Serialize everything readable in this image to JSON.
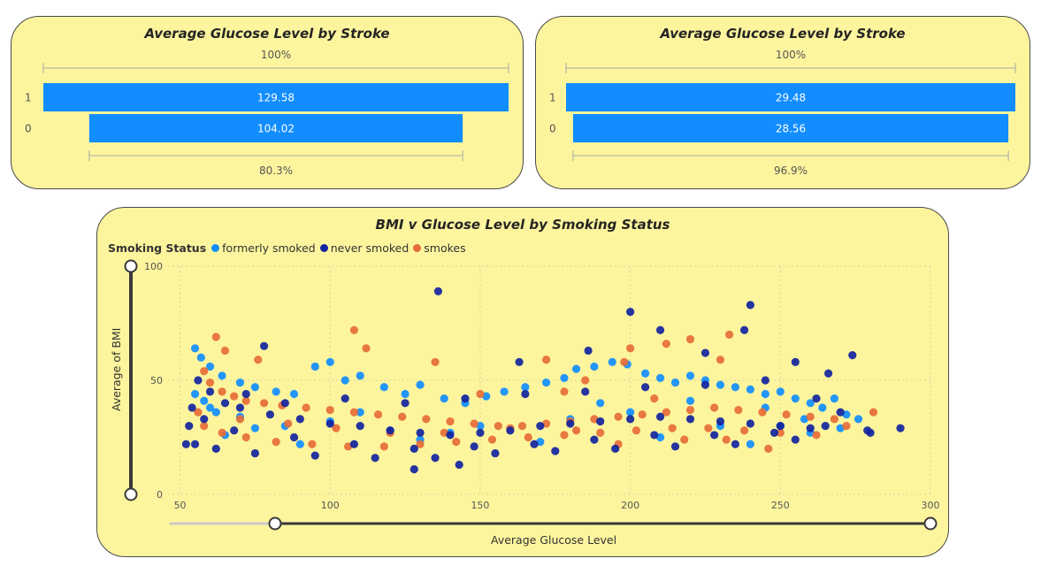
{
  "funnels": [
    {
      "title": "Average Glucose Level by Stroke",
      "top_pct": "100%",
      "bottom_pct": "80.3%",
      "bar_color": "#118dff"
    },
    {
      "title": "Average Glucose Level by Stroke",
      "top_pct": "100%",
      "bottom_pct": "96.9%",
      "bar_color": "#118dff"
    }
  ],
  "scatter": {
    "title": "BMI v Glucose Level by Smoking Status",
    "legend_title": "Smoking Status",
    "x_title": "Average Glucose Level",
    "y_title": "Average of BMI"
  },
  "chart_data": [
    {
      "type": "bar",
      "title": "Average Glucose Level by Stroke",
      "categories": [
        "1",
        "0"
      ],
      "values": [
        129.58,
        104.02
      ],
      "value_labels": [
        "129.58",
        "104.02"
      ],
      "percent_of_first": [
        "100%",
        "80.3%"
      ]
    },
    {
      "type": "bar",
      "title": "Average Glucose Level by Stroke",
      "categories": [
        "1",
        "0"
      ],
      "values": [
        29.48,
        28.56
      ],
      "value_labels": [
        "29.48",
        "28.56"
      ],
      "percent_of_first": [
        "100%",
        "96.9%"
      ]
    },
    {
      "type": "scatter",
      "title": "BMI v Glucose Level by Smoking Status",
      "xlabel": "Average Glucose Level",
      "ylabel": "Average of BMI",
      "xlim": [
        46,
        300
      ],
      "ylim": [
        0,
        100
      ],
      "x_ticks": [
        50,
        100,
        150,
        200,
        250,
        300
      ],
      "y_ticks": [
        0,
        50,
        100
      ],
      "grid": true,
      "legend_position": "top-left",
      "series": [
        {
          "name": "formerly smoked",
          "color": "#118dff",
          "points": [
            [
              55,
              64
            ],
            [
              57,
              60
            ],
            [
              60,
              56
            ],
            [
              64,
              52
            ],
            [
              70,
              49
            ],
            [
              75,
              47
            ],
            [
              82,
              45
            ],
            [
              88,
              44
            ],
            [
              95,
              56
            ],
            [
              100,
              58
            ],
            [
              105,
              50
            ],
            [
              110,
              52
            ],
            [
              118,
              47
            ],
            [
              125,
              44
            ],
            [
              130,
              48
            ],
            [
              138,
              42
            ],
            [
              145,
              40
            ],
            [
              152,
              43
            ],
            [
              158,
              45
            ],
            [
              165,
              47
            ],
            [
              172,
              49
            ],
            [
              178,
              51
            ],
            [
              182,
              55
            ],
            [
              188,
              56
            ],
            [
              194,
              58
            ],
            [
              199,
              57
            ],
            [
              205,
              53
            ],
            [
              210,
              51
            ],
            [
              215,
              49
            ],
            [
              220,
              52
            ],
            [
              225,
              50
            ],
            [
              230,
              48
            ],
            [
              235,
              47
            ],
            [
              240,
              46
            ],
            [
              245,
              44
            ],
            [
              250,
              45
            ],
            [
              255,
              42
            ],
            [
              260,
              40
            ],
            [
              264,
              38
            ],
            [
              268,
              42
            ],
            [
              272,
              35
            ],
            [
              276,
              33
            ],
            [
              60,
              38
            ],
            [
              70,
              34
            ],
            [
              85,
              30
            ],
            [
              100,
              32
            ],
            [
              120,
              28
            ],
            [
              150,
              30
            ],
            [
              180,
              33
            ],
            [
              200,
              36
            ],
            [
              230,
              30
            ],
            [
              250,
              30
            ],
            [
              260,
              27
            ],
            [
              270,
              29
            ],
            [
              65,
              26
            ],
            [
              90,
              22
            ],
            [
              130,
              24
            ],
            [
              170,
              23
            ],
            [
              210,
              25
            ],
            [
              240,
              22
            ],
            [
              55,
              44
            ],
            [
              58,
              41
            ],
            [
              62,
              36
            ],
            [
              75,
              29
            ],
            [
              110,
              36
            ],
            [
              140,
              27
            ],
            [
              190,
              40
            ],
            [
              220,
              41
            ],
            [
              245,
              38
            ],
            [
              258,
              33
            ]
          ]
        },
        {
          "name": "never smoked",
          "color": "#12239e",
          "points": [
            [
              136,
              89
            ],
            [
              200,
              80
            ],
            [
              240,
              83
            ],
            [
              238,
              72
            ],
            [
              210,
              72
            ],
            [
              78,
              65
            ],
            [
              163,
              58
            ],
            [
              186,
              63
            ],
            [
              274,
              61
            ],
            [
              255,
              58
            ],
            [
              225,
              62
            ],
            [
              266,
              53
            ],
            [
              290,
              29
            ],
            [
              279,
              28
            ],
            [
              280,
              27
            ],
            [
              56,
              50
            ],
            [
              60,
              45
            ],
            [
              65,
              40
            ],
            [
              70,
              38
            ],
            [
              80,
              35
            ],
            [
              90,
              33
            ],
            [
              100,
              31
            ],
            [
              110,
              30
            ],
            [
              120,
              28
            ],
            [
              130,
              27
            ],
            [
              140,
              26
            ],
            [
              150,
              27
            ],
            [
              160,
              28
            ],
            [
              170,
              30
            ],
            [
              180,
              31
            ],
            [
              190,
              32
            ],
            [
              200,
              33
            ],
            [
              210,
              34
            ],
            [
              220,
              33
            ],
            [
              230,
              32
            ],
            [
              240,
              31
            ],
            [
              250,
              30
            ],
            [
              260,
              29
            ],
            [
              265,
              30
            ],
            [
              55,
              22
            ],
            [
              62,
              20
            ],
            [
              75,
              18
            ],
            [
              95,
              17
            ],
            [
              115,
              16
            ],
            [
              135,
              16
            ],
            [
              155,
              18
            ],
            [
              175,
              19
            ],
            [
              195,
              20
            ],
            [
              215,
              21
            ],
            [
              235,
              22
            ],
            [
              255,
              24
            ],
            [
              58,
              33
            ],
            [
              68,
              28
            ],
            [
              88,
              25
            ],
            [
              108,
              22
            ],
            [
              128,
              20
            ],
            [
              148,
              21
            ],
            [
              168,
              22
            ],
            [
              188,
              24
            ],
            [
              208,
              26
            ],
            [
              228,
              26
            ],
            [
              248,
              27
            ],
            [
              270,
              36
            ],
            [
              262,
              42
            ],
            [
              245,
              50
            ],
            [
              225,
              48
            ],
            [
              205,
              47
            ],
            [
              185,
              45
            ],
            [
              165,
              44
            ],
            [
              145,
              42
            ],
            [
              125,
              40
            ],
            [
              105,
              42
            ],
            [
              85,
              40
            ],
            [
              72,
              44
            ],
            [
              128,
              11
            ],
            [
              143,
              13
            ],
            [
              52,
              22
            ],
            [
              53,
              30
            ],
            [
              54,
              38
            ]
          ]
        },
        {
          "name": "smokes",
          "color": "#e66c37",
          "points": [
            [
              108,
              72
            ],
            [
              62,
              69
            ],
            [
              65,
              63
            ],
            [
              112,
              64
            ],
            [
              200,
              64
            ],
            [
              212,
              66
            ],
            [
              233,
              70
            ],
            [
              220,
              68
            ],
            [
              172,
              59
            ],
            [
              135,
              58
            ],
            [
              76,
              59
            ],
            [
              58,
              54
            ],
            [
              60,
              49
            ],
            [
              64,
              45
            ],
            [
              68,
              43
            ],
            [
              72,
              41
            ],
            [
              78,
              40
            ],
            [
              84,
              39
            ],
            [
              92,
              38
            ],
            [
              100,
              37
            ],
            [
              108,
              36
            ],
            [
              116,
              35
            ],
            [
              124,
              34
            ],
            [
              132,
              33
            ],
            [
              140,
              32
            ],
            [
              148,
              31
            ],
            [
              156,
              30
            ],
            [
              164,
              30
            ],
            [
              172,
              31
            ],
            [
              180,
              32
            ],
            [
              188,
              33
            ],
            [
              196,
              34
            ],
            [
              204,
              35
            ],
            [
              212,
              36
            ],
            [
              220,
              37
            ],
            [
              228,
              38
            ],
            [
              236,
              37
            ],
            [
              244,
              36
            ],
            [
              252,
              35
            ],
            [
              260,
              34
            ],
            [
              268,
              33
            ],
            [
              281,
              36
            ],
            [
              58,
              30
            ],
            [
              64,
              27
            ],
            [
              72,
              25
            ],
            [
              82,
              23
            ],
            [
              94,
              22
            ],
            [
              106,
              21
            ],
            [
              118,
              21
            ],
            [
              130,
              22
            ],
            [
              142,
              23
            ],
            [
              154,
              24
            ],
            [
              166,
              25
            ],
            [
              178,
              26
            ],
            [
              190,
              27
            ],
            [
              202,
              28
            ],
            [
              214,
              29
            ],
            [
              226,
              29
            ],
            [
              238,
              28
            ],
            [
              250,
              27
            ],
            [
              262,
              26
            ],
            [
              272,
              30
            ],
            [
              56,
              36
            ],
            [
              70,
              33
            ],
            [
              86,
              31
            ],
            [
              102,
              29
            ],
            [
              120,
              27
            ],
            [
              138,
              27
            ],
            [
              160,
              29
            ],
            [
              182,
              28
            ],
            [
              196,
              22
            ],
            [
              218,
              24
            ],
            [
              232,
              24
            ],
            [
              246,
              20
            ],
            [
              178,
              45
            ],
            [
              208,
              42
            ],
            [
              150,
              44
            ],
            [
              198,
              58
            ],
            [
              230,
              59
            ],
            [
              185,
              50
            ]
          ]
        }
      ]
    }
  ]
}
